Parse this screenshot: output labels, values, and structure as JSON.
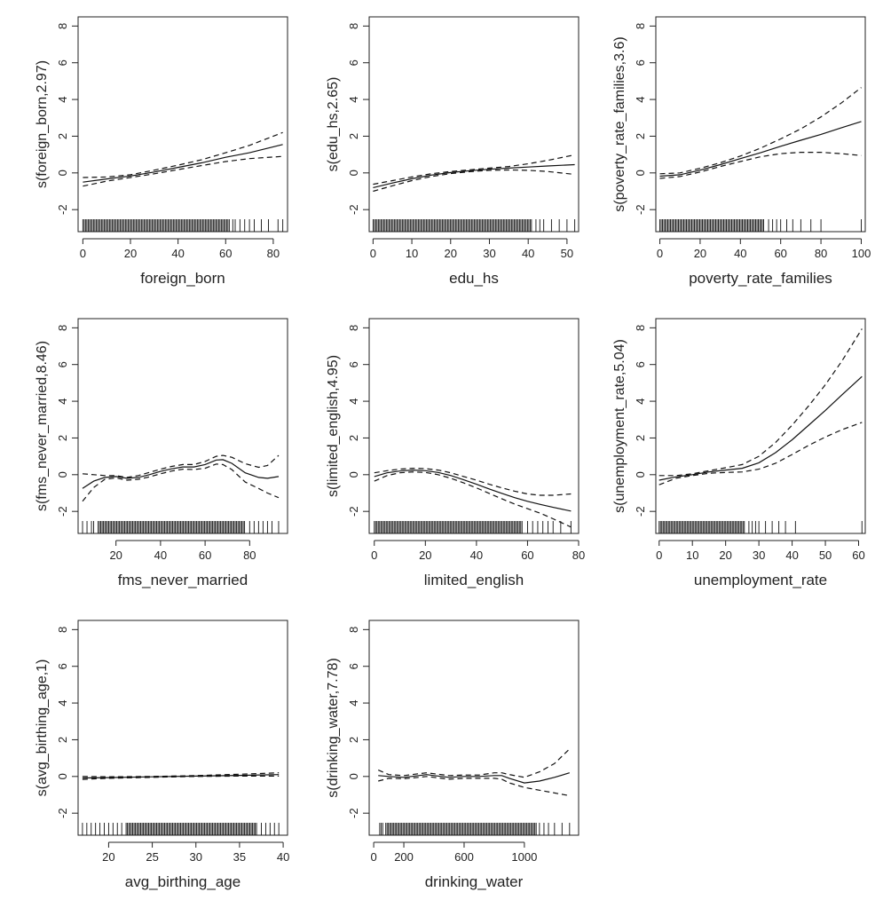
{
  "figure_description": "",
  "chart_data": [
    {
      "type": "line",
      "xlabel": "foreign_born",
      "ylabel": "s(foreign_born,2.97)",
      "xlim": [
        -2,
        86
      ],
      "ylim": [
        -3.2,
        8.5
      ],
      "xticks": [
        0,
        20,
        40,
        60,
        80
      ],
      "yticks": [
        -2,
        0,
        2,
        4,
        6,
        8
      ],
      "grid": false,
      "series": [
        {
          "name": "",
          "style": "solid",
          "x": [
            0,
            10,
            20,
            30,
            40,
            50,
            60,
            70,
            84
          ],
          "y": [
            -0.5,
            -0.33,
            -0.17,
            0.05,
            0.3,
            0.55,
            0.85,
            1.1,
            1.55
          ]
        },
        {
          "name": "",
          "style": "dashed",
          "x": [
            0,
            10,
            20,
            30,
            40,
            50,
            60,
            70,
            84
          ],
          "y": [
            -0.25,
            -0.22,
            -0.1,
            0.15,
            0.42,
            0.72,
            1.1,
            1.5,
            2.2
          ]
        },
        {
          "name": "",
          "style": "dashed",
          "x": [
            0,
            10,
            20,
            30,
            40,
            50,
            60,
            70,
            84
          ],
          "y": [
            -0.72,
            -0.45,
            -0.25,
            -0.05,
            0.18,
            0.4,
            0.62,
            0.78,
            0.9
          ]
        }
      ],
      "rug": {
        "dense": [
          0,
          62
        ],
        "sparse": [
          63,
          64,
          66,
          68,
          70,
          72,
          75,
          78,
          82,
          84
        ]
      }
    },
    {
      "type": "line",
      "xlabel": "edu_hs",
      "ylabel": "s(edu_hs,2.65)",
      "xlim": [
        -1,
        53
      ],
      "ylim": [
        -3.2,
        8.5
      ],
      "xticks": [
        0,
        10,
        20,
        30,
        40,
        50
      ],
      "yticks": [
        -2,
        0,
        2,
        4,
        6,
        8
      ],
      "grid": false,
      "series": [
        {
          "name": "",
          "style": "solid",
          "x": [
            0,
            5,
            10,
            15,
            20,
            25,
            30,
            35,
            40,
            45,
            52
          ],
          "y": [
            -0.8,
            -0.55,
            -0.32,
            -0.12,
            0.02,
            0.12,
            0.2,
            0.26,
            0.32,
            0.38,
            0.45
          ]
        },
        {
          "name": "",
          "style": "dashed",
          "x": [
            0,
            5,
            10,
            15,
            20,
            25,
            30,
            35,
            40,
            45,
            52
          ],
          "y": [
            -0.62,
            -0.42,
            -0.22,
            -0.05,
            0.08,
            0.17,
            0.26,
            0.35,
            0.5,
            0.68,
            0.98
          ]
        },
        {
          "name": "",
          "style": "dashed",
          "x": [
            0,
            5,
            10,
            15,
            20,
            25,
            30,
            35,
            40,
            45,
            52
          ],
          "y": [
            -1.0,
            -0.7,
            -0.42,
            -0.2,
            -0.04,
            0.07,
            0.14,
            0.16,
            0.14,
            0.08,
            -0.08
          ]
        }
      ],
      "rug": {
        "dense": [
          0,
          41
        ],
        "sparse": [
          42,
          43,
          44,
          46,
          48,
          50,
          52
        ]
      }
    },
    {
      "type": "line",
      "xlabel": "poverty_rate_families",
      "ylabel": "s(poverty_rate_families,3.6)",
      "xlim": [
        -2,
        102
      ],
      "ylim": [
        -3.2,
        8.5
      ],
      "xticks": [
        0,
        20,
        40,
        60,
        80,
        100
      ],
      "yticks": [
        -2,
        0,
        2,
        4,
        6,
        8
      ],
      "grid": false,
      "series": [
        {
          "name": "",
          "style": "solid",
          "x": [
            0,
            10,
            20,
            30,
            40,
            50,
            60,
            70,
            80,
            90,
            100
          ],
          "y": [
            -0.18,
            -0.1,
            0.15,
            0.45,
            0.78,
            1.1,
            1.45,
            1.78,
            2.1,
            2.45,
            2.8
          ]
        },
        {
          "name": "",
          "style": "dashed",
          "x": [
            0,
            10,
            20,
            30,
            40,
            50,
            60,
            70,
            80,
            90,
            100
          ],
          "y": [
            -0.05,
            0.0,
            0.25,
            0.55,
            0.92,
            1.35,
            1.85,
            2.4,
            3.05,
            3.8,
            4.65
          ]
        },
        {
          "name": "",
          "style": "dashed",
          "x": [
            0,
            10,
            20,
            30,
            40,
            50,
            60,
            70,
            80,
            90,
            100
          ],
          "y": [
            -0.3,
            -0.2,
            0.05,
            0.35,
            0.62,
            0.88,
            1.05,
            1.12,
            1.12,
            1.05,
            0.95
          ]
        }
      ],
      "rug": {
        "dense": [
          0,
          52
        ],
        "sparse": [
          54,
          56,
          58,
          60,
          63,
          66,
          70,
          75,
          80,
          100
        ]
      }
    },
    {
      "type": "line",
      "xlabel": "fms_never_married",
      "ylabel": "s(fms_never_married,8.46)",
      "xlim": [
        3,
        97
      ],
      "ylim": [
        -3.2,
        8.5
      ],
      "xticks": [
        20,
        40,
        60,
        80
      ],
      "yticks": [
        -2,
        0,
        2,
        4,
        6,
        8
      ],
      "grid": false,
      "series": [
        {
          "name": "",
          "style": "solid",
          "x": [
            5,
            10,
            15,
            20,
            25,
            30,
            35,
            40,
            45,
            50,
            55,
            60,
            65,
            68,
            72,
            78,
            84,
            88,
            93
          ],
          "y": [
            -0.75,
            -0.35,
            -0.15,
            -0.1,
            -0.2,
            -0.15,
            0.0,
            0.18,
            0.32,
            0.42,
            0.42,
            0.55,
            0.8,
            0.82,
            0.62,
            0.1,
            -0.15,
            -0.2,
            -0.1
          ]
        },
        {
          "name": "",
          "style": "dashed",
          "x": [
            5,
            10,
            15,
            20,
            25,
            30,
            35,
            40,
            45,
            50,
            55,
            60,
            65,
            68,
            72,
            78,
            84,
            88,
            93
          ],
          "y": [
            0.05,
            0.0,
            -0.05,
            -0.05,
            -0.15,
            -0.05,
            0.12,
            0.3,
            0.45,
            0.55,
            0.55,
            0.72,
            1.0,
            1.05,
            0.95,
            0.6,
            0.4,
            0.5,
            1.05
          ]
        },
        {
          "name": "",
          "style": "dashed",
          "x": [
            5,
            10,
            15,
            20,
            25,
            30,
            35,
            40,
            45,
            50,
            55,
            60,
            65,
            68,
            72,
            78,
            84,
            88,
            93
          ],
          "y": [
            -1.45,
            -0.7,
            -0.25,
            -0.18,
            -0.3,
            -0.25,
            -0.12,
            0.05,
            0.2,
            0.3,
            0.28,
            0.35,
            0.58,
            0.55,
            0.28,
            -0.4,
            -0.75,
            -1.0,
            -1.25
          ]
        }
      ],
      "rug": {
        "dense": [
          12,
          78
        ],
        "sparse": [
          5,
          7,
          9,
          10,
          80,
          82,
          84,
          86,
          88,
          90,
          93
        ]
      }
    },
    {
      "type": "line",
      "xlabel": "limited_english",
      "ylabel": "s(limited_english,4.95)",
      "xlim": [
        -2,
        80
      ],
      "ylim": [
        -3.2,
        8.5
      ],
      "xticks": [
        0,
        20,
        40,
        60,
        80
      ],
      "yticks": [
        -2,
        0,
        2,
        4,
        6,
        8
      ],
      "grid": false,
      "series": [
        {
          "name": "",
          "style": "solid",
          "x": [
            0,
            5,
            10,
            15,
            20,
            25,
            30,
            35,
            40,
            45,
            50,
            55,
            60,
            65,
            70,
            77
          ],
          "y": [
            -0.1,
            0.1,
            0.2,
            0.25,
            0.22,
            0.12,
            -0.05,
            -0.28,
            -0.52,
            -0.78,
            -1.02,
            -1.25,
            -1.45,
            -1.62,
            -1.78,
            -1.98
          ]
        },
        {
          "name": "",
          "style": "dashed",
          "x": [
            0,
            5,
            10,
            15,
            20,
            25,
            30,
            35,
            40,
            45,
            50,
            55,
            60,
            65,
            70,
            77
          ],
          "y": [
            0.1,
            0.22,
            0.3,
            0.35,
            0.33,
            0.25,
            0.1,
            -0.1,
            -0.3,
            -0.52,
            -0.72,
            -0.9,
            -1.05,
            -1.12,
            -1.12,
            -1.05
          ]
        },
        {
          "name": "",
          "style": "dashed",
          "x": [
            0,
            5,
            10,
            15,
            20,
            25,
            30,
            35,
            40,
            45,
            50,
            55,
            60,
            65,
            70,
            77
          ],
          "y": [
            -0.35,
            -0.05,
            0.1,
            0.15,
            0.12,
            0.0,
            -0.2,
            -0.45,
            -0.72,
            -1.02,
            -1.32,
            -1.6,
            -1.85,
            -2.1,
            -2.4,
            -2.85
          ]
        }
      ],
      "rug": {
        "dense": [
          0,
          58
        ],
        "sparse": [
          60,
          62,
          64,
          66,
          68,
          70,
          73,
          77
        ]
      }
    },
    {
      "type": "line",
      "xlabel": "unemployment_rate",
      "ylabel": "s(unemployment_rate,5.04)",
      "xlim": [
        -1,
        62
      ],
      "ylim": [
        -3.2,
        8.5
      ],
      "xticks": [
        0,
        10,
        20,
        30,
        40,
        50,
        60
      ],
      "yticks": [
        -2,
        0,
        2,
        4,
        6,
        8
      ],
      "grid": false,
      "series": [
        {
          "name": "",
          "style": "solid",
          "x": [
            0,
            5,
            10,
            15,
            20,
            25,
            30,
            35,
            40,
            45,
            50,
            55,
            61
          ],
          "y": [
            -0.3,
            -0.12,
            0.0,
            0.15,
            0.25,
            0.35,
            0.65,
            1.2,
            1.9,
            2.7,
            3.5,
            4.35,
            5.35
          ]
        },
        {
          "name": "",
          "style": "dashed",
          "x": [
            0,
            5,
            10,
            15,
            20,
            25,
            30,
            35,
            40,
            45,
            50,
            55,
            61
          ],
          "y": [
            -0.05,
            -0.05,
            0.05,
            0.22,
            0.38,
            0.55,
            1.0,
            1.75,
            2.7,
            3.75,
            4.9,
            6.2,
            7.95
          ]
        },
        {
          "name": "",
          "style": "dashed",
          "x": [
            0,
            5,
            10,
            15,
            20,
            25,
            30,
            35,
            40,
            45,
            50,
            55,
            61
          ],
          "y": [
            -0.55,
            -0.2,
            -0.05,
            0.08,
            0.12,
            0.15,
            0.3,
            0.62,
            1.1,
            1.6,
            2.05,
            2.45,
            2.85
          ]
        }
      ],
      "rug": {
        "dense": [
          0,
          26
        ],
        "sparse": [
          27,
          28,
          29,
          30,
          32,
          34,
          36,
          38,
          41,
          61
        ]
      }
    },
    {
      "type": "line",
      "xlabel": "avg_birthing_age",
      "ylabel": "s(avg_birthing_age,1)",
      "xlim": [
        16.5,
        40.5
      ],
      "ylim": [
        -3.2,
        8.5
      ],
      "xticks": [
        20,
        25,
        30,
        35,
        40
      ],
      "yticks": [
        -2,
        0,
        2,
        4,
        6,
        8
      ],
      "grid": false,
      "series": [
        {
          "name": "",
          "style": "solid",
          "x": [
            17,
            20,
            25,
            30,
            35,
            39.5
          ],
          "y": [
            -0.08,
            -0.06,
            -0.02,
            0.02,
            0.06,
            0.1
          ]
        },
        {
          "name": "",
          "style": "dashed",
          "x": [
            17,
            20,
            25,
            30,
            35,
            39.5
          ],
          "y": [
            0.0,
            -0.02,
            0.0,
            0.05,
            0.12,
            0.2
          ]
        },
        {
          "name": "",
          "style": "dashed",
          "x": [
            17,
            20,
            25,
            30,
            35,
            39.5
          ],
          "y": [
            -0.16,
            -0.1,
            -0.05,
            0.0,
            0.02,
            0.02
          ]
        }
      ],
      "rug": {
        "dense": [
          22,
          37
        ],
        "sparse": [
          17,
          17.5,
          18,
          18.5,
          19,
          19.5,
          20,
          20.5,
          21,
          21.5,
          37.5,
          38,
          38.5,
          39,
          39.5
        ]
      }
    },
    {
      "type": "line",
      "xlabel": "drinking_water",
      "ylabel": "s(drinking_water,7.78)",
      "xlim": [
        -30,
        1360
      ],
      "ylim": [
        -3.2,
        8.5
      ],
      "xticks": [
        0,
        200,
        600,
        1000
      ],
      "yticks": [
        -2,
        0,
        2,
        4,
        6,
        8
      ],
      "grid": false,
      "series": [
        {
          "name": "",
          "style": "solid",
          "x": [
            30,
            100,
            200,
            300,
            350,
            400,
            500,
            600,
            700,
            800,
            850,
            900,
            1000,
            1100,
            1200,
            1300
          ],
          "y": [
            0.05,
            0.0,
            -0.05,
            0.05,
            0.1,
            0.05,
            -0.05,
            0.0,
            0.0,
            0.05,
            0.05,
            -0.1,
            -0.35,
            -0.25,
            -0.05,
            0.2
          ]
        },
        {
          "name": "",
          "style": "dashed",
          "x": [
            30,
            100,
            200,
            300,
            350,
            400,
            500,
            600,
            700,
            800,
            850,
            900,
            1000,
            1100,
            1200,
            1300
          ],
          "y": [
            0.35,
            0.1,
            0.05,
            0.15,
            0.2,
            0.15,
            0.05,
            0.08,
            0.08,
            0.2,
            0.2,
            0.1,
            -0.05,
            0.25,
            0.7,
            1.5
          ]
        },
        {
          "name": "",
          "style": "dashed",
          "x": [
            30,
            100,
            200,
            300,
            350,
            400,
            500,
            600,
            700,
            800,
            850,
            900,
            1000,
            1100,
            1200,
            1300
          ],
          "y": [
            -0.25,
            -0.1,
            -0.12,
            -0.05,
            0.0,
            -0.05,
            -0.15,
            -0.1,
            -0.1,
            -0.1,
            -0.15,
            -0.35,
            -0.6,
            -0.75,
            -0.9,
            -1.05
          ]
        }
      ],
      "rug": {
        "dense": [
          80,
          1080
        ],
        "sparse": [
          40,
          50,
          60,
          1100,
          1130,
          1160,
          1200,
          1250,
          1300
        ]
      }
    }
  ]
}
